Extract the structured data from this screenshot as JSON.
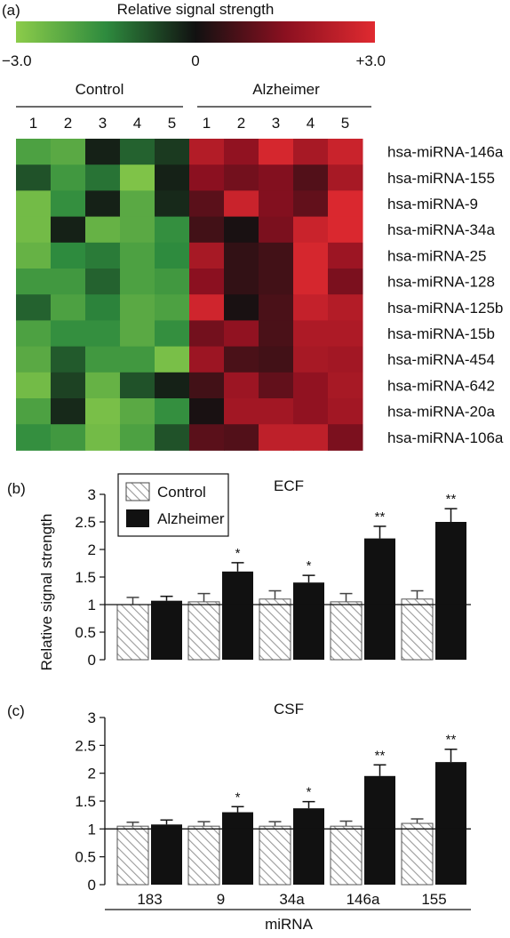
{
  "panel_a": {
    "label": "(a)",
    "scale_title": "Relative signal strength",
    "scale_min_label": "−3.0",
    "scale_mid_label": "0",
    "scale_max_label": "+3.0",
    "scale_colors": [
      "#8ccc4a",
      "#2e8b3e",
      "#111111",
      "#8b1020",
      "#e02a30"
    ],
    "group_left": "Control",
    "group_right": "Alzheimer",
    "columns_left": [
      "1",
      "2",
      "3",
      "4",
      "5"
    ],
    "columns_right": [
      "1",
      "2",
      "3",
      "4",
      "5"
    ],
    "rows": [
      "hsa-miRNA-146a",
      "hsa-miRNA-155",
      "hsa-miRNA-9",
      "hsa-miRNA-34a",
      "hsa-miRNA-25",
      "hsa-miRNA-128",
      "hsa-miRNA-125b",
      "hsa-miRNA-15b",
      "hsa-miRNA-454",
      "hsa-miRNA-642",
      "hsa-miRNA-20a",
      "hsa-miRNA-106a"
    ]
  },
  "chart_data": [
    {
      "type": "heatmap",
      "rows": [
        "hsa-miRNA-146a",
        "hsa-miRNA-155",
        "hsa-miRNA-9",
        "hsa-miRNA-34a",
        "hsa-miRNA-25",
        "hsa-miRNA-128",
        "hsa-miRNA-125b",
        "hsa-miRNA-15b",
        "hsa-miRNA-454",
        "hsa-miRNA-642",
        "hsa-miRNA-20a",
        "hsa-miRNA-106a"
      ],
      "columns": [
        "Control 1",
        "Control 2",
        "Control 3",
        "Control 4",
        "Control 5",
        "Alzheimer 1",
        "Alzheimer 2",
        "Alzheimer 3",
        "Alzheimer 4",
        "Alzheimer 5"
      ],
      "values": [
        [
          -2.0,
          -2.2,
          -0.2,
          -1.0,
          -0.5,
          2.2,
          1.6,
          2.8,
          2.0,
          2.6
        ],
        [
          -0.8,
          -1.8,
          -1.2,
          -2.8,
          -0.2,
          1.5,
          1.2,
          1.4,
          0.8,
          2.0
        ],
        [
          -2.6,
          -1.6,
          -0.2,
          -2.2,
          -0.3,
          0.9,
          2.6,
          1.4,
          1.0,
          2.9
        ],
        [
          -2.6,
          -0.2,
          -2.4,
          -2.2,
          -1.6,
          0.6,
          0.1,
          1.3,
          2.6,
          2.9
        ],
        [
          -2.4,
          -1.5,
          -1.3,
          -2.0,
          -1.5,
          2.0,
          0.4,
          0.6,
          2.8,
          1.8
        ],
        [
          -1.8,
          -1.8,
          -1.0,
          -2.0,
          -1.8,
          1.5,
          0.4,
          0.6,
          2.8,
          1.3
        ],
        [
          -1.0,
          -2.0,
          -1.4,
          -2.2,
          -2.0,
          2.7,
          0.1,
          0.7,
          2.5,
          2.2
        ],
        [
          -2.0,
          -1.6,
          -1.6,
          -2.2,
          -1.6,
          1.2,
          1.6,
          0.7,
          2.1,
          2.1
        ],
        [
          -2.2,
          -0.9,
          -1.8,
          -1.8,
          -2.7,
          1.8,
          0.7,
          0.6,
          2.0,
          1.9
        ],
        [
          -2.6,
          -0.6,
          -2.4,
          -0.8,
          -0.2,
          0.6,
          1.8,
          1.0,
          1.6,
          2.0
        ],
        [
          -2.0,
          -0.3,
          -2.7,
          -2.2,
          -1.6,
          0.1,
          1.9,
          1.9,
          1.6,
          1.9
        ],
        [
          -1.6,
          -1.8,
          -2.6,
          -2.0,
          -0.8,
          0.9,
          0.8,
          2.4,
          2.4,
          1.3
        ]
      ],
      "range": [
        -3.0,
        3.0
      ]
    },
    {
      "type": "bar",
      "panel_label": "(b)",
      "title": "ECF",
      "categories": [
        "183",
        "9",
        "34a",
        "146a",
        "155"
      ],
      "series": [
        {
          "name": "Control",
          "values": [
            1.0,
            1.05,
            1.1,
            1.05,
            1.1
          ],
          "errors": [
            0.13,
            0.15,
            0.15,
            0.15,
            0.15
          ],
          "significance": [
            "",
            "",
            "",
            "",
            ""
          ]
        },
        {
          "name": "Alzheimer",
          "values": [
            1.07,
            1.6,
            1.4,
            2.2,
            2.5
          ],
          "errors": [
            0.08,
            0.16,
            0.13,
            0.22,
            0.24
          ],
          "significance": [
            "",
            "*",
            "*",
            "**",
            "**"
          ]
        }
      ],
      "ylim": [
        0,
        3
      ],
      "yticks": [
        "0",
        "0.5",
        "1",
        "1.5",
        "2",
        "2.5",
        "3"
      ],
      "reference_line": 1.0,
      "legend": "top-left"
    },
    {
      "type": "bar",
      "panel_label": "(c)",
      "title": "CSF",
      "categories": [
        "183",
        "9",
        "34a",
        "146a",
        "155"
      ],
      "series": [
        {
          "name": "Control",
          "values": [
            1.05,
            1.05,
            1.05,
            1.05,
            1.1
          ],
          "errors": [
            0.07,
            0.08,
            0.08,
            0.09,
            0.08
          ],
          "significance": [
            "",
            "",
            "",
            "",
            ""
          ]
        },
        {
          "name": "Alzheimer",
          "values": [
            1.08,
            1.3,
            1.37,
            1.95,
            2.2
          ],
          "errors": [
            0.08,
            0.1,
            0.12,
            0.2,
            0.23
          ],
          "significance": [
            "",
            "*",
            "*",
            "**",
            "**"
          ]
        }
      ],
      "ylim": [
        0,
        3
      ],
      "yticks": [
        "0",
        "0.5",
        "1",
        "1.5",
        "2",
        "2.5",
        "3"
      ],
      "reference_line": 1.0,
      "xlabel": "miRNA"
    }
  ],
  "shared": {
    "ylabel": "Relative signal strength",
    "xlabel": "miRNA",
    "legend_control": "Control",
    "legend_alzheimer": "Alzheimer",
    "control_fill": "#ffffff",
    "alz_fill": "#111111"
  }
}
